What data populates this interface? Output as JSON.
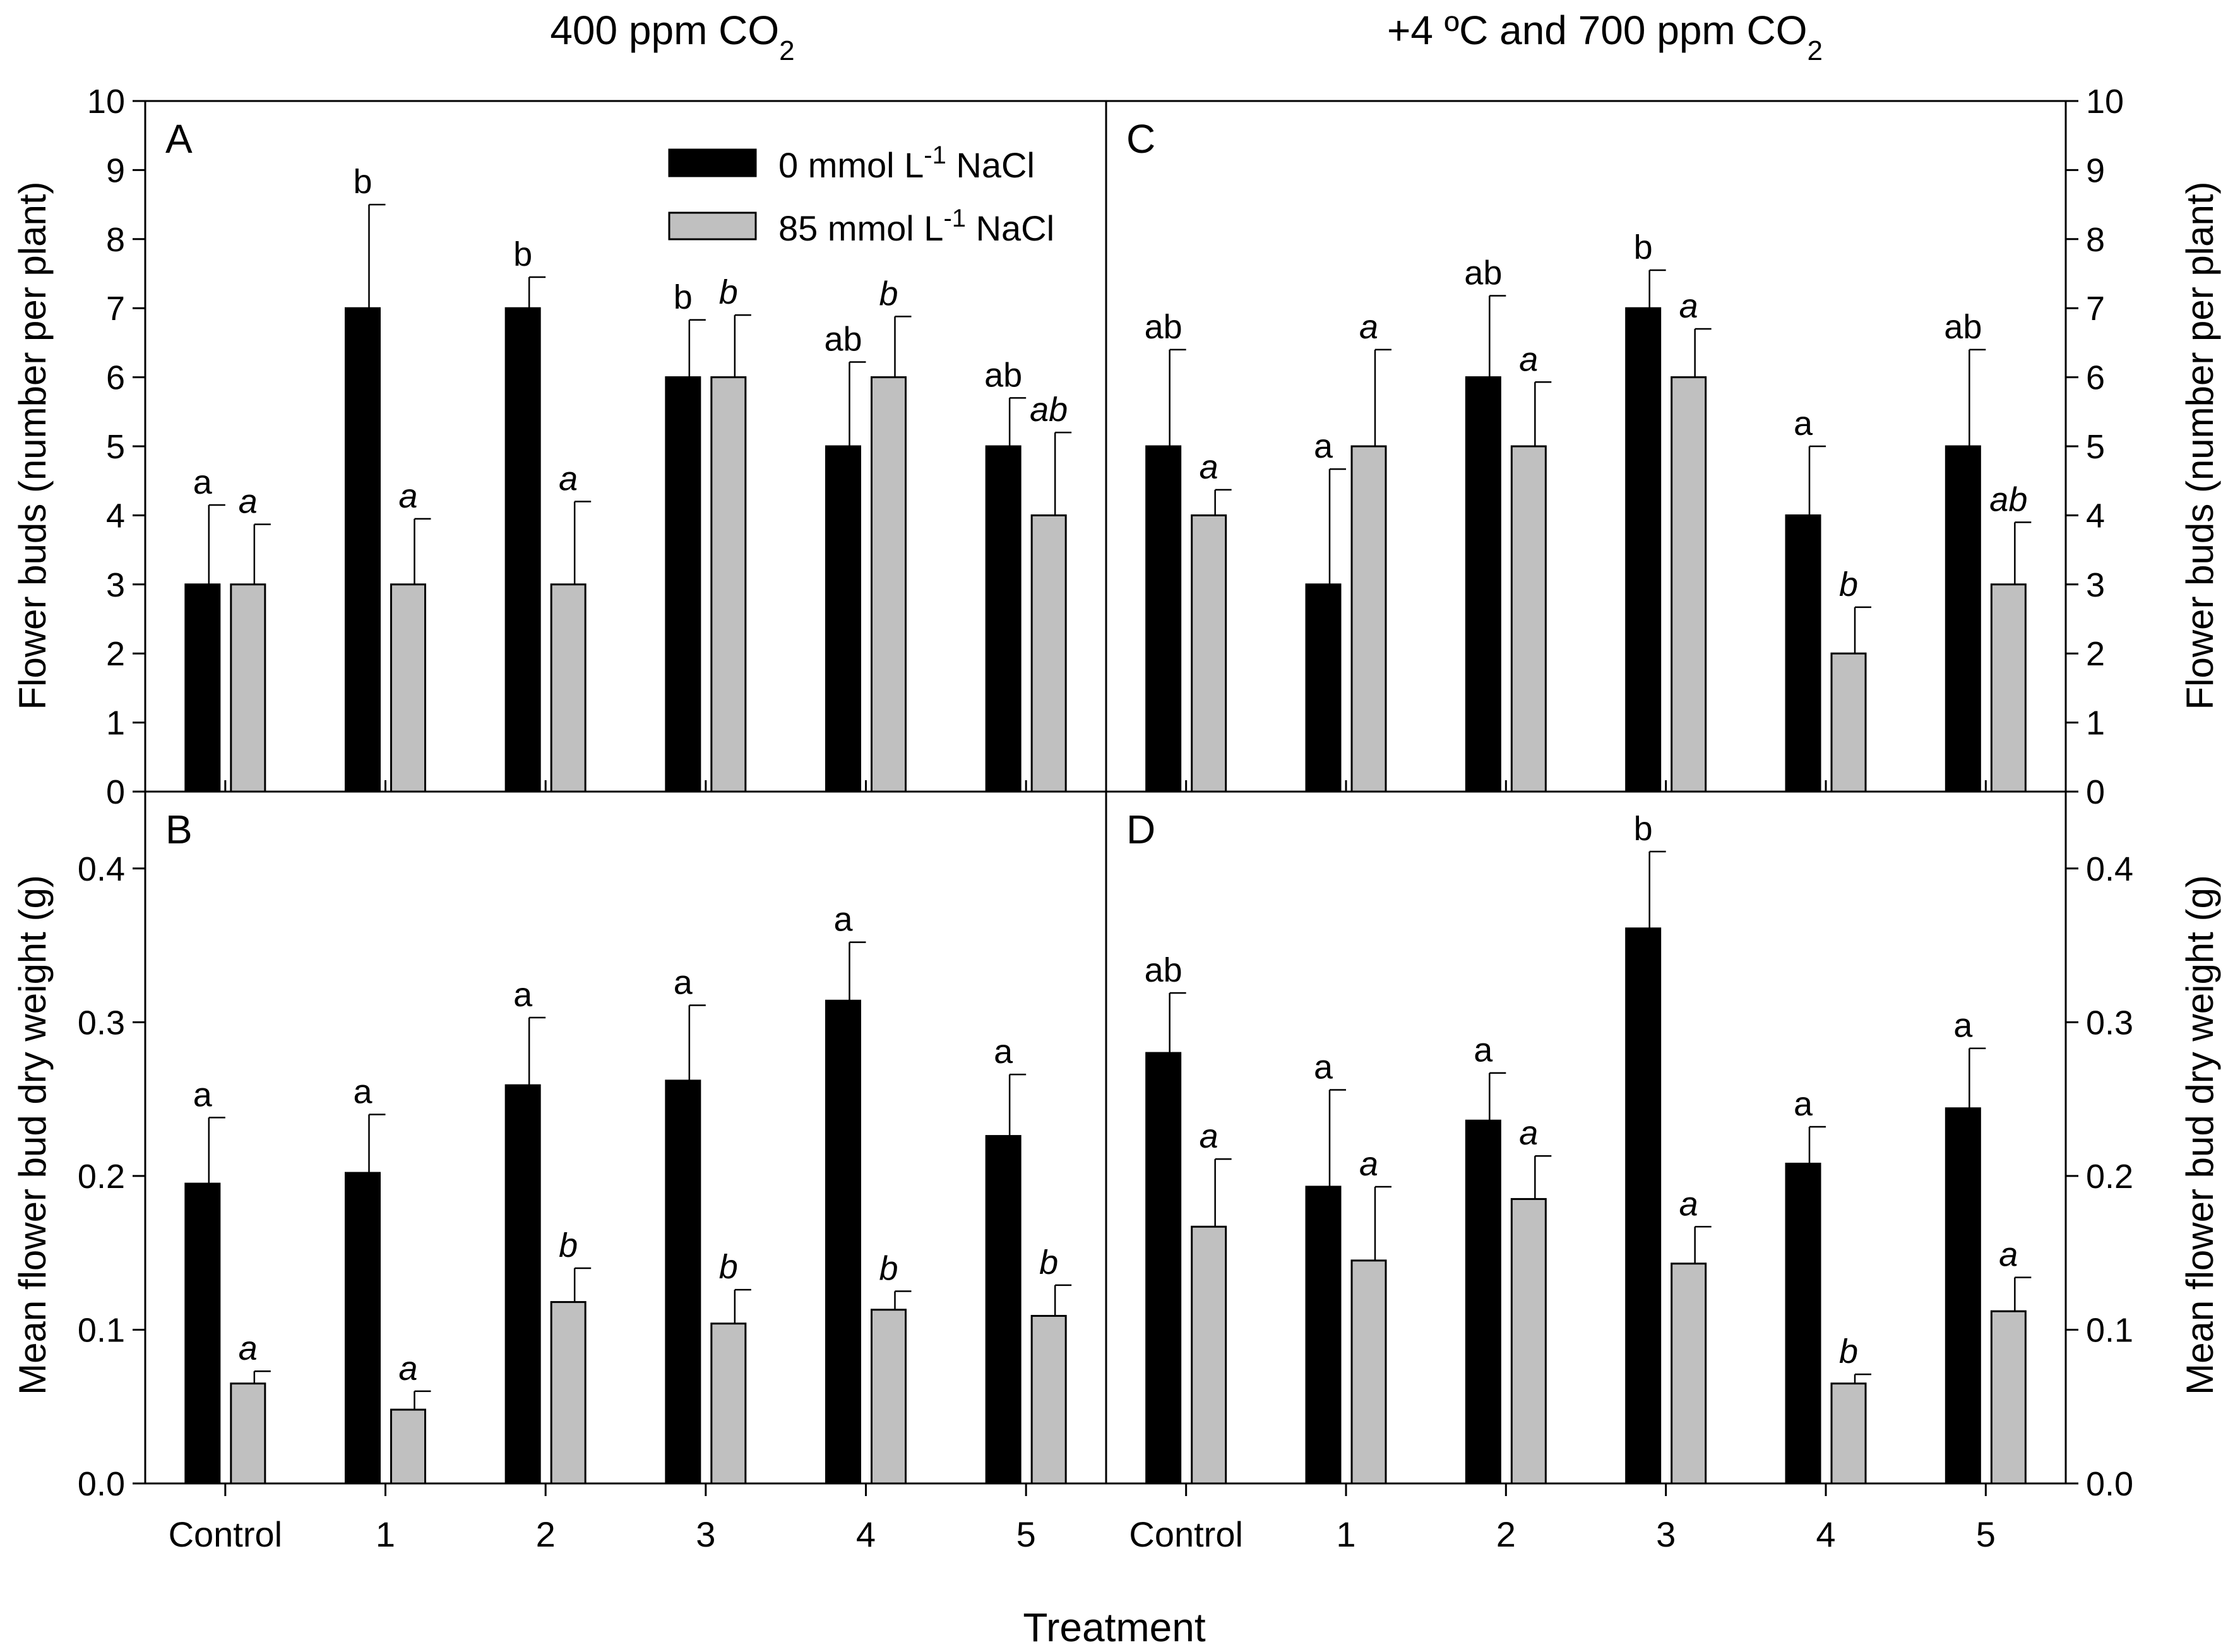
{
  "chart_data": {
    "type": "bar",
    "headers": {
      "left": {
        "text": "400 ppm CO",
        "sub": "2"
      },
      "right": {
        "text": "+4 ºC and 700 ppm CO",
        "sub": "2"
      }
    },
    "xlabel": "Treatment",
    "categories": [
      "Control",
      "1",
      "2",
      "3",
      "4",
      "5"
    ],
    "legend": {
      "position": "top-right of panel A",
      "entries": [
        {
          "pre": "0 mmol L",
          "sup": "-1",
          "post": " NaCl",
          "color": "#000000"
        },
        {
          "pre": "85 mmol L",
          "sup": "-1",
          "post": " NaCl",
          "color": "#c0c0c0"
        }
      ]
    },
    "rows": [
      {
        "ylabel": "Flower buds (number per plant)",
        "ylim": [
          0,
          10
        ],
        "yticks": [
          "0",
          "1",
          "2",
          "3",
          "4",
          "5",
          "6",
          "7",
          "8",
          "9",
          "10"
        ]
      },
      {
        "ylabel": "Mean flower bud dry weight (g)",
        "ylim": [
          0,
          0.45
        ],
        "yticks": [
          "0.0",
          "0.1",
          "0.2",
          "0.3",
          "0.4"
        ]
      }
    ],
    "panels": [
      {
        "label": "A",
        "row": 0,
        "col": 0,
        "series": [
          {
            "name": "0 mmol L-1 NaCl",
            "color": "#000000",
            "values": [
              3,
              7,
              7,
              6,
              5,
              5
            ],
            "errors": [
              1.15,
              1.5,
              0.45,
              0.83,
              1.22,
              0.7
            ],
            "letters": [
              "a",
              "b",
              "b",
              "b",
              "ab",
              "ab"
            ]
          },
          {
            "name": "85 mmol L-1 NaCl",
            "color": "#c0c0c0",
            "values": [
              3,
              3,
              3,
              6,
              6,
              4
            ],
            "errors": [
              0.87,
              0.95,
              1.2,
              0.9,
              0.88,
              1.2
            ],
            "letters": [
              "a",
              "a",
              "a",
              "b",
              "b",
              "ab"
            ]
          }
        ]
      },
      {
        "label": "C",
        "row": 0,
        "col": 1,
        "series": [
          {
            "name": "0 mmol L-1 NaCl",
            "color": "#000000",
            "values": [
              5,
              3,
              6,
              7,
              4,
              5
            ],
            "errors": [
              1.4,
              1.67,
              1.18,
              0.55,
              1.0,
              1.4
            ],
            "letters": [
              "ab",
              "a",
              "ab",
              "b",
              "a",
              "ab"
            ]
          },
          {
            "name": "85 mmol L-1 NaCl",
            "color": "#c0c0c0",
            "values": [
              4,
              5,
              5,
              6,
              2,
              3
            ],
            "errors": [
              0.37,
              1.4,
              0.93,
              0.7,
              0.67,
              0.9
            ],
            "letters": [
              "a",
              "a",
              "a",
              "a",
              "b",
              "ab"
            ]
          }
        ]
      },
      {
        "label": "B",
        "row": 1,
        "col": 0,
        "series": [
          {
            "name": "0 mmol L-1 NaCl",
            "color": "#000000",
            "values": [
              0.195,
              0.202,
              0.259,
              0.262,
              0.314,
              0.226
            ],
            "errors": [
              0.043,
              0.038,
              0.044,
              0.049,
              0.038,
              0.04
            ],
            "letters": [
              "a",
              "a",
              "a",
              "a",
              "a",
              "a"
            ]
          },
          {
            "name": "85 mmol L-1 NaCl",
            "color": "#c0c0c0",
            "values": [
              0.065,
              0.048,
              0.118,
              0.104,
              0.113,
              0.109
            ],
            "errors": [
              0.008,
              0.012,
              0.022,
              0.022,
              0.012,
              0.02
            ],
            "letters": [
              "a",
              "a",
              "b",
              "b",
              "b",
              "b"
            ]
          }
        ]
      },
      {
        "label": "D",
        "row": 1,
        "col": 1,
        "series": [
          {
            "name": "0 mmol L-1 NaCl",
            "color": "#000000",
            "values": [
              0.28,
              0.193,
              0.236,
              0.361,
              0.208,
              0.244
            ],
            "errors": [
              0.039,
              0.063,
              0.031,
              0.05,
              0.024,
              0.039
            ],
            "letters": [
              "ab",
              "a",
              "a",
              "b",
              "a",
              "a"
            ]
          },
          {
            "name": "85 mmol L-1 NaCl",
            "color": "#c0c0c0",
            "values": [
              0.167,
              0.145,
              0.185,
              0.143,
              0.065,
              0.112
            ],
            "errors": [
              0.044,
              0.048,
              0.028,
              0.024,
              0.006,
              0.022
            ],
            "letters": [
              "a",
              "a",
              "a",
              "a",
              "b",
              "a"
            ]
          }
        ]
      }
    ]
  }
}
